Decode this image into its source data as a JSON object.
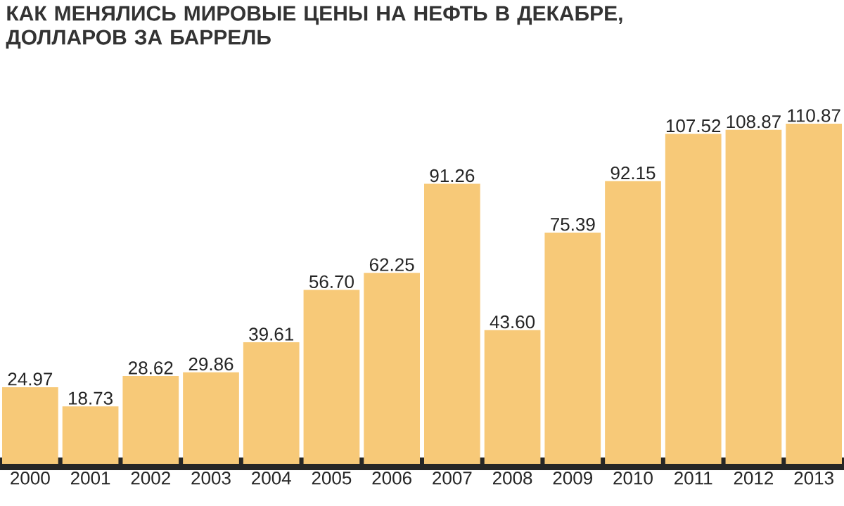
{
  "chart_data": {
    "type": "bar",
    "title": "КАК МЕНЯЛИСЬ МИРОВЫЕ ЦЕНЫ НА НЕФТЬ В ДЕКАБРЕ, ДОЛЛАРОВ ЗА БАРРЕЛЬ",
    "categories": [
      "2000",
      "2001",
      "2002",
      "2003",
      "2004",
      "2005",
      "2006",
      "2007",
      "2008",
      "2009",
      "2010",
      "2011",
      "2012",
      "2013"
    ],
    "values": [
      24.97,
      18.73,
      28.62,
      29.86,
      39.61,
      56.7,
      62.25,
      91.26,
      43.6,
      75.39,
      92.15,
      107.52,
      108.87,
      110.87
    ],
    "value_labels": [
      "24.97",
      "18.73",
      "28.62",
      "29.86",
      "39.61",
      "56.70",
      "62.25",
      "91.26",
      "43.60",
      "75.39",
      "92.15",
      "107.52",
      "108.87",
      "110.87"
    ],
    "color": "#f7c978"
  }
}
